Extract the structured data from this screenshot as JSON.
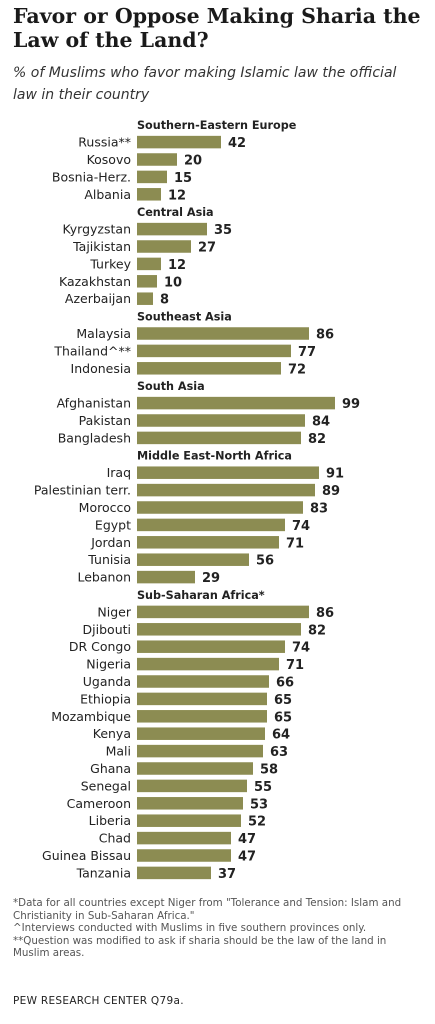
{
  "title": "Favor or Oppose Making Sharia the Law of the Land?",
  "subtitle": "% of Muslims who favor making Islamic law the official law in their country",
  "footnotes": [
    "*Data for all countries except Niger from \"Tolerance and Tension: Islam and Christianity in Sub-Saharan Africa.\"",
    "^Interviews conducted with Muslims in five southern provinces only.",
    "**Question was modified to ask if sharia should be the law of the land in Muslim areas."
  ],
  "source": "PEW RESEARCH CENTER Q79a.",
  "colors": {
    "bar": "#8c8c52",
    "text": "#222222"
  },
  "chart_data": {
    "type": "bar",
    "orientation": "horizontal",
    "xlim": [
      0,
      100
    ],
    "groups": [
      {
        "name": "Southern-Eastern  Europe",
        "categories": [
          "Russia**",
          "Kosovo",
          "Bosnia-Herz.",
          "Albania"
        ],
        "values": [
          42,
          20,
          15,
          12
        ]
      },
      {
        "name": "Central Asia",
        "categories": [
          "Kyrgyzstan",
          "Tajikistan",
          "Turkey",
          "Kazakhstan",
          "Azerbaijan"
        ],
        "values": [
          35,
          27,
          12,
          10,
          8
        ]
      },
      {
        "name": "Southeast  Asia",
        "categories": [
          "Malaysia",
          "Thailand^**",
          "Indonesia"
        ],
        "values": [
          86,
          77,
          72
        ]
      },
      {
        "name": "South Asia",
        "categories": [
          "Afghanistan",
          "Pakistan",
          "Bangladesh"
        ],
        "values": [
          99,
          84,
          82
        ]
      },
      {
        "name": "Middle East-North  Africa",
        "categories": [
          "Iraq",
          "Palestinian terr.",
          "Morocco",
          "Egypt",
          "Jordan",
          "Tunisia",
          "Lebanon"
        ],
        "values": [
          91,
          89,
          83,
          74,
          71,
          56,
          29
        ]
      },
      {
        "name": "Sub-Saharan  Africa*",
        "categories": [
          "Niger",
          "Djibouti",
          "DR Congo",
          "Nigeria",
          "Uganda",
          "Ethiopia",
          "Mozambique",
          "Kenya",
          "Mali",
          "Ghana",
          "Senegal",
          "Cameroon",
          "Liberia",
          "Chad",
          "Guinea Bissau",
          "Tanzania"
        ],
        "values": [
          86,
          82,
          74,
          71,
          66,
          65,
          65,
          64,
          63,
          58,
          55,
          53,
          52,
          47,
          47,
          37
        ]
      }
    ]
  }
}
